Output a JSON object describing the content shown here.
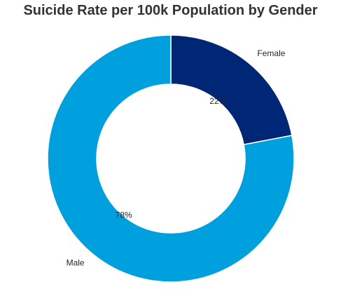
{
  "chart_data": {
    "type": "pie",
    "variant": "donut",
    "title": "Suicide Rate per 100k Population by Gender",
    "categories": [
      "Female",
      "Male"
    ],
    "values": [
      22,
      78
    ],
    "value_labels": [
      "22%",
      "78%"
    ],
    "colors": [
      "#002776",
      "#00A0DF"
    ],
    "legend": "none"
  }
}
